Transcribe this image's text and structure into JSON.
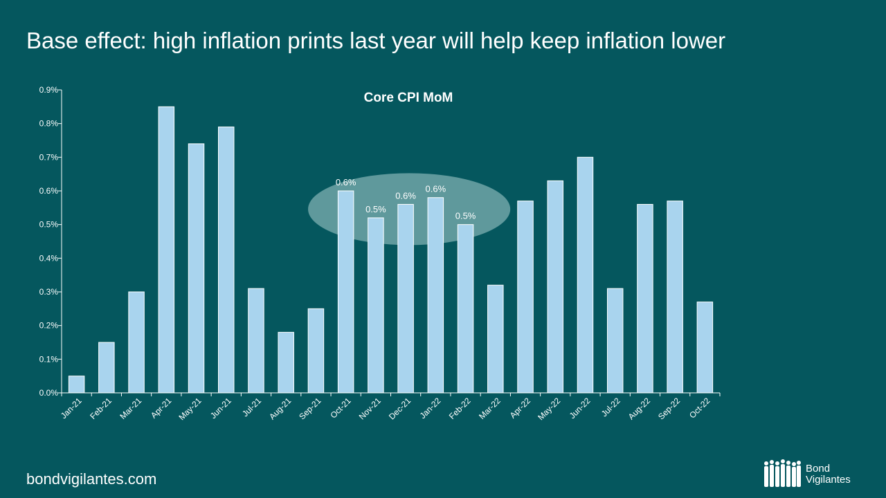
{
  "slide": {
    "title": "Base effect: high inflation prints last year will help keep inflation lower",
    "footer_url": "bondvigilantes.com",
    "brand": {
      "line1": "Bond",
      "line2": "Vigilantes"
    }
  },
  "colors": {
    "background": "#05575e",
    "bar": "#a9d4ee",
    "highlight": "#a9cfd0"
  },
  "chart_data": {
    "type": "bar",
    "title": "Core CPI MoM",
    "xlabel": "",
    "ylabel": "",
    "categories": [
      "Jan-21",
      "Feb-21",
      "Mar-21",
      "Apr-21",
      "May-21",
      "Jun-21",
      "Jul-21",
      "Aug-21",
      "Sep-21",
      "Oct-21",
      "Nov-21",
      "Dec-21",
      "Jan-22",
      "Feb-22",
      "Mar-22",
      "Apr-22",
      "May-22",
      "Jun-22",
      "Jul-22",
      "Aug-22",
      "Sep-22",
      "Oct-22"
    ],
    "values": [
      0.05,
      0.15,
      0.3,
      0.85,
      0.74,
      0.79,
      0.31,
      0.18,
      0.25,
      0.6,
      0.52,
      0.56,
      0.58,
      0.5,
      0.32,
      0.57,
      0.63,
      0.7,
      0.31,
      0.56,
      0.57,
      0.27
    ],
    "ylim": [
      0,
      0.9
    ],
    "yticks": [
      "0.0%",
      "0.1%",
      "0.2%",
      "0.3%",
      "0.4%",
      "0.5%",
      "0.6%",
      "0.7%",
      "0.8%",
      "0.9%"
    ],
    "data_labels": [
      {
        "index": 9,
        "text": "0.6%"
      },
      {
        "index": 10,
        "text": "0.5%"
      },
      {
        "index": 11,
        "text": "0.6%"
      },
      {
        "index": 12,
        "text": "0.6%"
      },
      {
        "index": 13,
        "text": "0.5%"
      }
    ],
    "highlight_range": [
      9,
      13
    ],
    "grid": false,
    "legend": "none"
  }
}
